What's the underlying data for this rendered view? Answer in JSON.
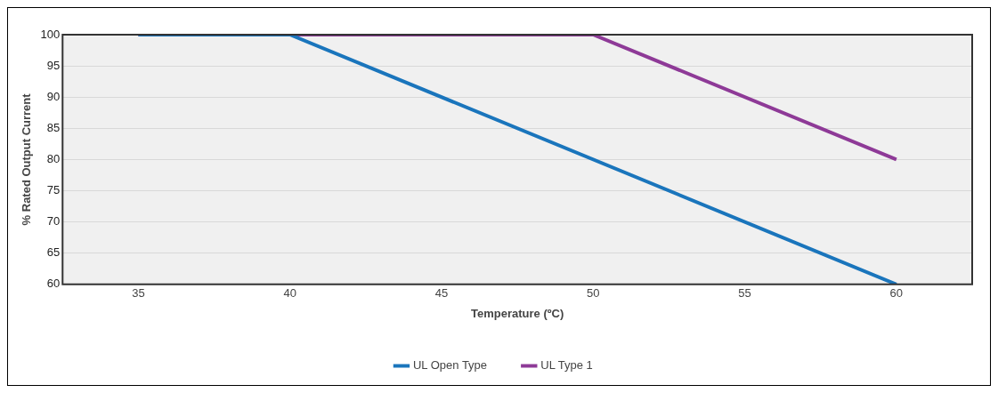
{
  "chart_data": {
    "type": "line",
    "xlabel": "Temperature (ºC)",
    "ylabel": "% Rated Output Current",
    "xlim": [
      32.5,
      62.5
    ],
    "xticks": [
      35,
      40,
      45,
      50,
      55,
      60
    ],
    "ylim": [
      60,
      100
    ],
    "yticks": [
      60,
      65,
      70,
      75,
      80,
      85,
      90,
      95,
      100
    ],
    "grid": "y",
    "legend": "bottom",
    "marker": "none",
    "line_style": "solid",
    "series": [
      {
        "name": "UL Open Type",
        "color": "#1a75bc",
        "x": [
          35,
          40,
          60
        ],
        "values": [
          100,
          100,
          60
        ]
      },
      {
        "name": "UL Type 1",
        "color": "#8e3a97",
        "x": [
          35,
          50,
          60
        ],
        "values": [
          100,
          100,
          80
        ]
      }
    ]
  }
}
